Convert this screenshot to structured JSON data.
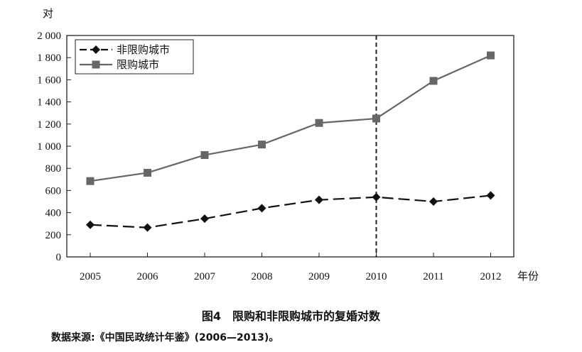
{
  "chart_data": {
    "type": "line",
    "title": "",
    "xlabel": "年份",
    "ylabel": "对",
    "ylim": [
      0,
      2000
    ],
    "yticks": [
      0,
      200,
      400,
      600,
      800,
      1000,
      1200,
      1400,
      1600,
      1800,
      2000
    ],
    "ytick_labels": [
      "0",
      "200",
      "400",
      "600",
      "800",
      "1 000",
      "1 200",
      "1 400",
      "1 600",
      "1 800",
      "2 000"
    ],
    "categories": [
      "2005",
      "2006",
      "2007",
      "2008",
      "2009",
      "2010",
      "2011",
      "2012"
    ],
    "reference_line": "2010",
    "grid": false,
    "legend_position": "top-left",
    "series": [
      {
        "name": "非限购城市",
        "style": "dashed",
        "marker": "diamond",
        "color": "#111111",
        "values": [
          290,
          265,
          345,
          440,
          515,
          540,
          500,
          555
        ]
      },
      {
        "name": "限购城市",
        "style": "solid",
        "marker": "square",
        "color": "#666666",
        "values": [
          685,
          760,
          920,
          1015,
          1210,
          1250,
          1590,
          1820
        ]
      }
    ]
  },
  "caption": "图4　限购和非限购城市的复婚对数",
  "source": "数据来源:《中国民政统计年鉴》(2006—2013)。"
}
